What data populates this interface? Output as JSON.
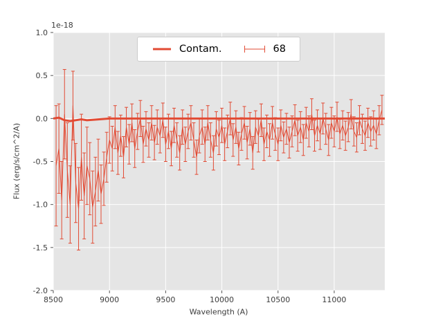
{
  "chart_data": {
    "type": "line",
    "title": "",
    "xlabel": "Wavelength (A)",
    "ylabel": "Flux (erg/s/cm^2/A)",
    "offset_text": "1e-18",
    "xlim": [
      8500,
      11450
    ],
    "ylim": [
      -2.0,
      1.0
    ],
    "grid": true,
    "legend_position": "upper center",
    "xticks": [
      8500,
      9000,
      9500,
      10000,
      10500,
      11000
    ],
    "xtick_labels": [
      "8500",
      "9000",
      "9500",
      "10000",
      "10500",
      "11000"
    ],
    "yticks": [
      -2.0,
      -1.5,
      -1.0,
      -0.5,
      0.0,
      0.5,
      1.0
    ],
    "ytick_labels": [
      "-2.0",
      "-1.5",
      "-1.0",
      "-0.5",
      "0.0",
      "0.5",
      "1.0"
    ],
    "colors": {
      "accent": "#E24A33",
      "plot_bg": "#E5E5E5",
      "grid": "#FFFFFF",
      "tick": "#555555",
      "text": "#3B3B3B",
      "legend_border": "#CCCCCC"
    },
    "series": [
      {
        "name": "Contam.",
        "type": "line",
        "color": "#E24A33",
        "linewidth": 3,
        "x": [
          8500,
          8550,
          8600,
          8650,
          8700,
          8750,
          8800,
          8900,
          9000,
          9500,
          10000,
          10500,
          11000,
          11450
        ],
        "y": [
          0.0,
          0.01,
          -0.02,
          -0.03,
          -0.02,
          -0.01,
          -0.02,
          -0.01,
          0.0,
          0.0,
          0.0,
          0.0,
          0.0,
          0.0
        ]
      },
      {
        "name": "68",
        "type": "errorbar",
        "color": "#E24A33",
        "linewidth": 1,
        "capsize": 2.5,
        "x": [
          8525,
          8550,
          8575,
          8600,
          8625,
          8650,
          8675,
          8700,
          8725,
          8750,
          8775,
          8800,
          8825,
          8850,
          8875,
          8900,
          8925,
          8950,
          8975,
          9000,
          9025,
          9050,
          9075,
          9100,
          9125,
          9150,
          9175,
          9200,
          9225,
          9250,
          9275,
          9300,
          9325,
          9350,
          9375,
          9400,
          9425,
          9450,
          9475,
          9500,
          9525,
          9550,
          9575,
          9600,
          9625,
          9650,
          9675,
          9700,
          9725,
          9750,
          9775,
          9800,
          9825,
          9850,
          9875,
          9900,
          9925,
          9950,
          9975,
          10000,
          10025,
          10050,
          10075,
          10100,
          10125,
          10150,
          10175,
          10200,
          10225,
          10250,
          10275,
          10300,
          10325,
          10350,
          10375,
          10400,
          10425,
          10450,
          10475,
          10500,
          10525,
          10550,
          10575,
          10600,
          10625,
          10650,
          10675,
          10700,
          10725,
          10750,
          10775,
          10800,
          10825,
          10850,
          10875,
          10900,
          10925,
          10950,
          10975,
          11000,
          11025,
          11050,
          11075,
          11100,
          11125,
          11150,
          11175,
          11200,
          11225,
          11250,
          11275,
          11300,
          11325,
          11350,
          11375,
          11400,
          11425
        ],
        "y": [
          -0.55,
          -0.35,
          -0.95,
          0.05,
          -0.6,
          -1.0,
          0.15,
          -0.75,
          -1.05,
          -0.45,
          -0.9,
          -0.55,
          -0.7,
          -1.03,
          -0.85,
          -0.6,
          -0.88,
          -0.7,
          -0.45,
          -0.25,
          -0.35,
          -0.1,
          -0.4,
          -0.2,
          -0.45,
          -0.1,
          -0.3,
          -0.05,
          -0.35,
          -0.15,
          0.0,
          -0.3,
          -0.12,
          -0.25,
          -0.05,
          -0.28,
          -0.1,
          -0.2,
          -0.02,
          -0.3,
          -0.15,
          -0.35,
          -0.08,
          -0.25,
          -0.4,
          -0.1,
          -0.3,
          -0.15,
          -0.05,
          -0.25,
          -0.45,
          -0.2,
          -0.1,
          -0.3,
          -0.05,
          -0.25,
          -0.4,
          -0.12,
          -0.22,
          -0.08,
          -0.3,
          -0.15,
          0.0,
          -0.25,
          -0.1,
          -0.35,
          -0.18,
          -0.05,
          -0.28,
          -0.12,
          -0.4,
          -0.1,
          -0.2,
          -0.02,
          -0.3,
          -0.15,
          -0.25,
          -0.05,
          -0.18,
          -0.3,
          -0.08,
          -0.22,
          -0.12,
          -0.28,
          -0.15,
          -0.02,
          -0.2,
          -0.1,
          -0.25,
          -0.05,
          -0.15,
          0.05,
          -0.2,
          -0.08,
          -0.18,
          0.0,
          -0.12,
          -0.25,
          -0.05,
          -0.15,
          0.02,
          -0.18,
          -0.08,
          -0.2,
          -0.1,
          0.05,
          -0.15,
          -0.22,
          -0.02,
          -0.12,
          -0.2,
          -0.05,
          -0.15,
          -0.08,
          -0.18,
          -0.02,
          0.1
        ],
        "yerr": [
          0.7,
          0.52,
          0.45,
          0.52,
          0.55,
          0.45,
          0.4,
          0.46,
          0.48,
          0.5,
          0.5,
          0.45,
          0.42,
          0.42,
          0.4,
          0.36,
          0.34,
          0.31,
          0.29,
          0.27,
          0.26,
          0.25,
          0.25,
          0.24,
          0.24,
          0.23,
          0.23,
          0.22,
          0.22,
          0.21,
          0.21,
          0.21,
          0.2,
          0.2,
          0.2,
          0.2,
          0.2,
          0.2,
          0.2,
          0.2,
          0.2,
          0.2,
          0.2,
          0.2,
          0.2,
          0.2,
          0.2,
          0.2,
          0.2,
          0.2,
          0.2,
          0.2,
          0.2,
          0.2,
          0.2,
          0.2,
          0.2,
          0.2,
          0.2,
          0.2,
          0.19,
          0.19,
          0.19,
          0.19,
          0.19,
          0.19,
          0.19,
          0.19,
          0.19,
          0.19,
          0.19,
          0.19,
          0.19,
          0.19,
          0.19,
          0.19,
          0.19,
          0.19,
          0.19,
          0.19,
          0.18,
          0.18,
          0.18,
          0.18,
          0.18,
          0.18,
          0.18,
          0.18,
          0.18,
          0.18,
          0.18,
          0.18,
          0.18,
          0.18,
          0.18,
          0.18,
          0.18,
          0.18,
          0.18,
          0.18,
          0.17,
          0.17,
          0.17,
          0.17,
          0.17,
          0.17,
          0.17,
          0.17,
          0.17,
          0.17,
          0.17,
          0.17,
          0.17,
          0.17,
          0.17,
          0.17,
          0.17
        ]
      }
    ]
  }
}
